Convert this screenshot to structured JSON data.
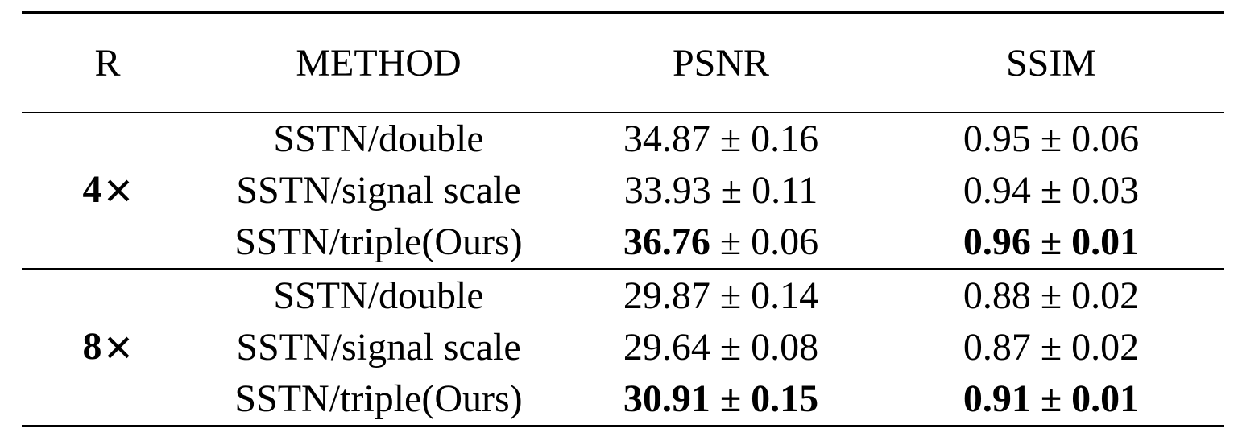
{
  "table": {
    "headers": [
      "R",
      "METHOD",
      "PSNR",
      "SSIM"
    ],
    "groups": [
      {
        "r": "4",
        "times": "×",
        "rows": [
          {
            "method": "SSTN/double",
            "psnr": {
              "value": "34.87",
              "pm": "± 0.16",
              "value_bold": false,
              "pm_bold": false
            },
            "ssim": {
              "value": "0.95",
              "pm": "± 0.06",
              "value_bold": false,
              "pm_bold": false
            }
          },
          {
            "method": "SSTN/signal scale",
            "psnr": {
              "value": "33.93",
              "pm": "± 0.11",
              "value_bold": false,
              "pm_bold": false
            },
            "ssim": {
              "value": "0.94",
              "pm": "± 0.03",
              "value_bold": false,
              "pm_bold": false
            }
          },
          {
            "method": "SSTN/triple(Ours)",
            "psnr": {
              "value": "36.76",
              "pm": "± 0.06",
              "value_bold": true,
              "pm_bold": false
            },
            "ssim": {
              "value": "0.96",
              "pm": "± 0.01",
              "value_bold": true,
              "pm_bold": true
            }
          }
        ]
      },
      {
        "r": "8",
        "times": "×",
        "rows": [
          {
            "method": "SSTN/double",
            "psnr": {
              "value": "29.87",
              "pm": "± 0.14",
              "value_bold": false,
              "pm_bold": false
            },
            "ssim": {
              "value": "0.88",
              "pm": "± 0.02",
              "value_bold": false,
              "pm_bold": false
            }
          },
          {
            "method": "SSTN/signal scale",
            "psnr": {
              "value": "29.64",
              "pm": "± 0.08",
              "value_bold": false,
              "pm_bold": false
            },
            "ssim": {
              "value": "0.87",
              "pm": "± 0.02",
              "value_bold": false,
              "pm_bold": false
            }
          },
          {
            "method": "SSTN/triple(Ours)",
            "psnr": {
              "value": "30.91",
              "pm": "± 0.15",
              "value_bold": true,
              "pm_bold": true
            },
            "ssim": {
              "value": "0.91",
              "pm": "± 0.01",
              "value_bold": true,
              "pm_bold": true
            }
          }
        ]
      }
    ]
  }
}
